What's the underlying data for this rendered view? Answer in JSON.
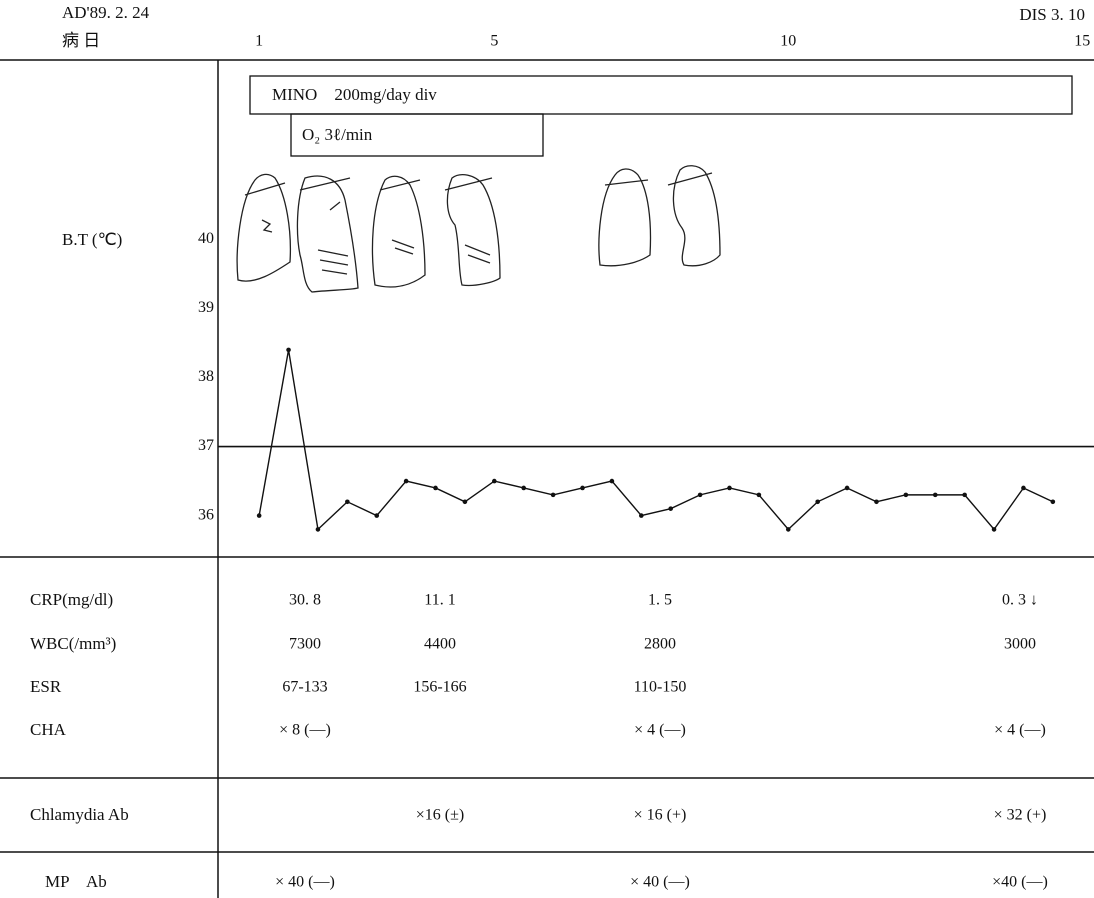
{
  "chart_data": {
    "type": "line",
    "start_date": "AD'89. 2. 24",
    "x_label": "病 日",
    "end_date": "DIS 3. 10",
    "ylabel": "B.T (℃)",
    "x": [
      1,
      1.5,
      2,
      2.5,
      3,
      3.5,
      4,
      4.5,
      5,
      5.5,
      6,
      6.5,
      7,
      7.5,
      8,
      8.5,
      9,
      9.5,
      10,
      10.5,
      11,
      11.5,
      12,
      12.5,
      13,
      13.5,
      14,
      14.5
    ],
    "values": [
      36.0,
      38.4,
      35.8,
      36.2,
      36.0,
      36.5,
      36.4,
      36.2,
      36.5,
      36.4,
      36.3,
      36.4,
      36.5,
      36.0,
      36.1,
      36.3,
      36.4,
      36.3,
      35.8,
      36.2,
      36.4,
      36.2,
      36.3,
      36.3,
      36.3,
      35.8,
      36.4,
      36.2
    ],
    "color": "#111111",
    "xlim": [
      0.3,
      15.2
    ],
    "xticks": [
      1,
      5,
      10,
      15
    ],
    "ylim": [
      35.4,
      42.6
    ],
    "yticks": [
      36,
      37,
      38,
      39,
      40
    ],
    "reference_line": 37
  },
  "treatments": [
    "MINO　200mg/day div",
    "O₂ 3ℓ/min"
  ],
  "table": {
    "rows": [
      {
        "label": "CRP(mg/dl)",
        "cells": [
          "30. 8",
          "11. 1",
          "1. 5",
          "0. 3 ↓"
        ]
      },
      {
        "label": "WBC(/mm³)",
        "cells": [
          "7300",
          "4400",
          "2800",
          "3000"
        ]
      },
      {
        "label": "ESR",
        "cells": [
          "67-133",
          "156-166",
          "110-150",
          null
        ]
      },
      {
        "label": "CHA",
        "cells": [
          "× 8 (—)",
          null,
          "× 4 (—)",
          "× 4 (—)"
        ]
      },
      {
        "label": "Chlamydia Ab",
        "cells": [
          null,
          "×16 (±)",
          "× 16 (+)",
          "× 32 (+)"
        ]
      },
      {
        "label": "MP　Ab",
        "cells": [
          "× 40 (—)",
          null,
          "× 40 (—)",
          "×40 (—)"
        ]
      }
    ]
  }
}
